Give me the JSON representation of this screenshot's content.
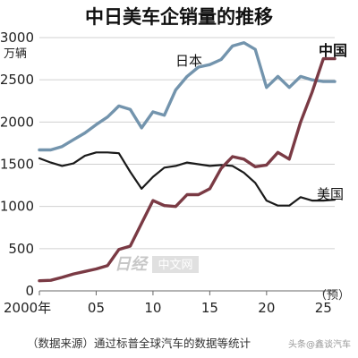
{
  "chart_data": {
    "type": "line",
    "title": "中日美车企销量的推移",
    "unit": "万辆",
    "x": [
      2000,
      2001,
      2002,
      2003,
      2004,
      2005,
      2006,
      2007,
      2008,
      2009,
      2010,
      2011,
      2012,
      2013,
      2014,
      2015,
      2016,
      2017,
      2018,
      2019,
      2020,
      2021,
      2022,
      2023,
      2024,
      2025,
      2026
    ],
    "series": [
      {
        "name": "日本",
        "color": "#7394ad",
        "values": [
          1670,
          1670,
          1710,
          1790,
          1870,
          1970,
          2060,
          2190,
          2150,
          1930,
          2120,
          2080,
          2380,
          2540,
          2650,
          2680,
          2740,
          2900,
          2940,
          2860,
          2410,
          2540,
          2410,
          2540,
          2500,
          2480,
          2480
        ]
      },
      {
        "name": "美国",
        "color": "#1a1a1a",
        "values": [
          1570,
          1520,
          1480,
          1510,
          1600,
          1640,
          1640,
          1630,
          1410,
          1210,
          1350,
          1460,
          1480,
          1520,
          1500,
          1480,
          1490,
          1480,
          1400,
          1280,
          1070,
          1010,
          1010,
          1110,
          1070,
          1070,
          1080
        ]
      },
      {
        "name": "中国",
        "color": "#7a3a44",
        "values": [
          120,
          125,
          160,
          200,
          230,
          260,
          300,
          490,
          530,
          800,
          1070,
          1010,
          1000,
          1140,
          1140,
          1210,
          1450,
          1590,
          1560,
          1470,
          1490,
          1640,
          1560,
          2000,
          2350,
          2750,
          2750
        ]
      }
    ],
    "ylim": [
      0,
      3000
    ],
    "yticks": [
      0,
      500,
      1000,
      1500,
      2000,
      2500,
      3000
    ],
    "xticks": [
      {
        "value": 2000,
        "label": "2000年"
      },
      {
        "value": 2005,
        "label": "05"
      },
      {
        "value": 2010,
        "label": "10"
      },
      {
        "value": 2015,
        "label": "15"
      },
      {
        "value": 2020,
        "label": "20"
      },
      {
        "value": 2025,
        "label": "25"
      }
    ],
    "forecast_label": "（预）",
    "grid": "horizontal"
  },
  "source_note": "（数据来源）通过标普全球汽车的数据等统计",
  "watermark": {
    "logo_text": "日经",
    "site_text": "中文网",
    "corner_text": "头条@鑫谈汽车"
  }
}
